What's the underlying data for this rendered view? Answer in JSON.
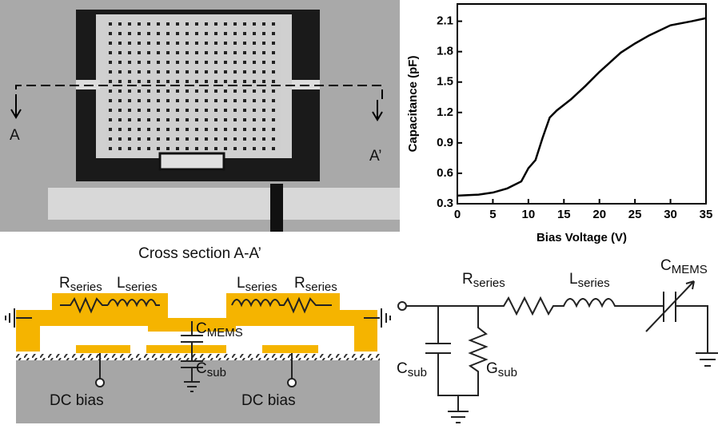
{
  "sem": {
    "labels": [
      "A",
      "A’"
    ]
  },
  "chart_data": {
    "type": "line",
    "x": [
      0,
      3,
      5,
      7,
      9,
      10,
      11,
      12,
      13,
      14,
      16,
      18,
      20,
      23,
      25,
      27,
      30,
      33,
      35
    ],
    "series": [
      {
        "color": "#000000",
        "values": [
          0.38,
          0.39,
          0.41,
          0.45,
          0.52,
          0.65,
          0.73,
          0.95,
          1.15,
          1.22,
          1.33,
          1.46,
          1.6,
          1.79,
          1.88,
          1.96,
          2.06,
          2.1,
          2.13
        ]
      }
    ],
    "xlabel": "Bias Voltage (V)",
    "ylabel": "Capacitance (pF)",
    "xlim": [
      0,
      35
    ],
    "ylim": [
      0.3,
      2.27
    ],
    "xticks": [
      0,
      5,
      10,
      15,
      20,
      25,
      30,
      35
    ],
    "yticks": [
      0.3,
      0.6,
      0.9,
      1.2,
      1.5,
      1.8,
      2.1
    ]
  },
  "cross_section": {
    "title": "Cross section A-A’",
    "labels": [
      {
        "main": "R",
        "sub": "series"
      },
      {
        "main": "L",
        "sub": "series"
      },
      {
        "main": "L",
        "sub": "series"
      },
      {
        "main": "R",
        "sub": "series"
      },
      {
        "main": "C",
        "sub": "MEMS"
      },
      {
        "main": "C",
        "sub": "sub"
      },
      {
        "main": "DC bias"
      },
      {
        "main": "DC bias"
      }
    ]
  },
  "circuit": {
    "labels": [
      {
        "main": "R",
        "sub": "series"
      },
      {
        "main": "L",
        "sub": "series"
      },
      {
        "main": "C",
        "sub": "MEMS"
      },
      {
        "main": "C",
        "sub": "sub"
      },
      {
        "main": "G",
        "sub": "sub"
      }
    ]
  }
}
